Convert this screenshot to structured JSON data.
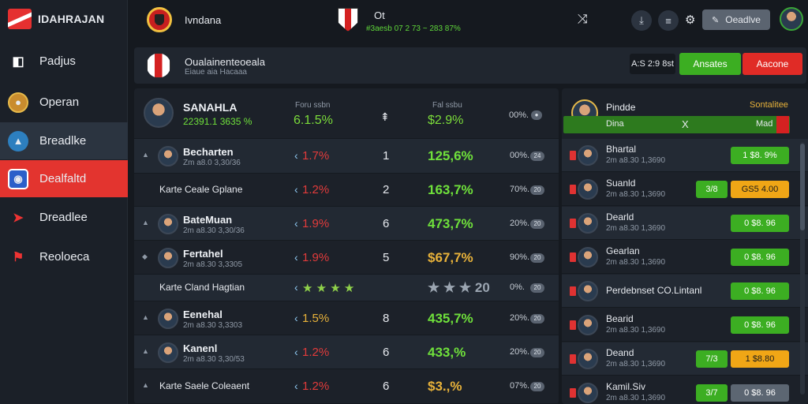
{
  "app": {
    "name": "IDAHRAJAN"
  },
  "nav": [
    {
      "label": "Padjus",
      "icon": "page-icon"
    },
    {
      "label": "Operan",
      "icon": "profile-icon"
    },
    {
      "label": "Breadlke",
      "icon": "sail-icon"
    },
    {
      "label": "Dealfaltd",
      "icon": "shield-icon"
    },
    {
      "label": "Dreadlee",
      "icon": "wing-icon"
    },
    {
      "label": "Reoloeca",
      "icon": "flag-icon"
    }
  ],
  "top": {
    "club": "Ivndana",
    "match_code": "Ot",
    "match_sub": "#3aesb 07 2 73 ~ 283 87%",
    "action_label": "Oeadlve"
  },
  "header": {
    "title": "Oualainenteoeala",
    "subtitle": "Eiaue aia Hacaaa",
    "score": "A:S 2:9 8st",
    "accept": "Ansates",
    "reject": "Aacone"
  },
  "featured": {
    "name": "SANAHLA",
    "stat": "22391.1 3635 %",
    "col1_head": "Foru ssbn",
    "col1_val": "6.1.5%",
    "col2_head": "Fal ssbu",
    "col2_val": "$2.9%",
    "pct": "00%."
  },
  "rows": [
    {
      "name": "Becharten",
      "sub": "Zm a8.0 3,30/36",
      "delta": "1.7%",
      "delta_color": "#e23b3b",
      "rank": "1",
      "value": "125,6%",
      "value_color": "#6fe03b",
      "pct": "00%.",
      "pill": "24",
      "avatar": true,
      "prefix": "▲"
    },
    {
      "name": "Karte Ceale Gplane",
      "sub": "",
      "delta": "1.2%",
      "delta_color": "#e23b3b",
      "rank": "2",
      "value": "163,7%",
      "value_color": "#6fe03b",
      "pct": "70%.",
      "pill": "20",
      "avatar": false,
      "prefix": ""
    },
    {
      "name": "BateMuan",
      "sub": "2m a8.30 3,30/36",
      "delta": "1.9%",
      "delta_color": "#e23b3b",
      "rank": "6",
      "value": "473,7%",
      "value_color": "#6fe03b",
      "pct": "20%.",
      "pill": "20",
      "avatar": true,
      "prefix": "▲"
    },
    {
      "name": "Fertahel",
      "sub": "2m a8.30 3,3305",
      "delta": "1.9%",
      "delta_color": "#e23b3b",
      "rank": "5",
      "value": "$67,7%",
      "value_color": "#e8b23a",
      "pct": "90%.",
      "pill": "20",
      "avatar": true,
      "prefix": "◆"
    },
    {
      "name": "Karte Cland Hagtian",
      "sub": "",
      "delta": "★ ★ ★ ★",
      "delta_color": "#8fd14a",
      "rank": "",
      "value": "★ ★ ★ 20",
      "value_color": "#9ba5b1",
      "pct": "0%.",
      "pill": "20",
      "avatar": false,
      "prefix": ""
    },
    {
      "name": "Eenehal",
      "sub": "2m a8.30 3,3303",
      "delta": "1.5%",
      "delta_color": "#e8b23a",
      "rank": "8",
      "value": "435,7%",
      "value_color": "#6fe03b",
      "pct": "20%.",
      "pill": "20",
      "avatar": true,
      "prefix": "▲"
    },
    {
      "name": "Kanenl",
      "sub": "2m a8.30 3,30/53",
      "delta": "1.2%",
      "delta_color": "#e23b3b",
      "rank": "6",
      "value": "433,%",
      "value_color": "#6fe03b",
      "pct": "20%.",
      "pill": "20",
      "avatar": true,
      "prefix": "▲"
    },
    {
      "name": "Karte Saele Coleaent",
      "sub": "",
      "delta": "1.2%",
      "delta_color": "#e23b3b",
      "rank": "6",
      "value": "$3.,%",
      "value_color": "#e8b23a",
      "pct": "07%.",
      "pill": "20",
      "avatar": false,
      "prefix": "▲"
    }
  ],
  "side": {
    "title": "Pindde",
    "title_right": "Sontalitee",
    "bar_left": "Dina",
    "bar_mid": "X",
    "bar_right": "Mad",
    "rows": [
      {
        "name": "Bhartal",
        "sub": "2m a8.30 1,3690",
        "b1": "",
        "b1_class": "",
        "b2": "1 $8. 9%",
        "b2_class": "green"
      },
      {
        "name": "Suanld",
        "sub": "2m a8.30 1,3690",
        "b1": "3/8",
        "b1_class": "green",
        "b2": "GS5 4.00",
        "b2_class": "orange"
      },
      {
        "name": "Dearld",
        "sub": "2m a8.30 1,3690",
        "b1": "",
        "b1_class": "",
        "b2": "0 $8. 96",
        "b2_class": "green"
      },
      {
        "name": "Gearlan",
        "sub": "2m a8.30 1,3690",
        "b1": "",
        "b1_class": "",
        "b2": "0 $8. 96",
        "b2_class": "green"
      },
      {
        "name": "Perdebnset CO.Lintanl",
        "sub": "",
        "b1": "",
        "b1_class": "",
        "b2": "0 $8. 96",
        "b2_class": "green"
      },
      {
        "name": "Bearid",
        "sub": "2m a8.30 1,3690",
        "b1": "",
        "b1_class": "",
        "b2": "0 $8. 96",
        "b2_class": "green"
      },
      {
        "name": "Deand",
        "sub": "2m a8.30 1,3690",
        "b1": "7/3",
        "b1_class": "green",
        "b2": "1 $8.80",
        "b2_class": "orange"
      },
      {
        "name": "Kamil.Siv",
        "sub": "2m a8.30 1,3690",
        "b1": "3/7",
        "b1_class": "green",
        "b2": "0 $8. 96",
        "b2_class": "gray"
      }
    ]
  }
}
